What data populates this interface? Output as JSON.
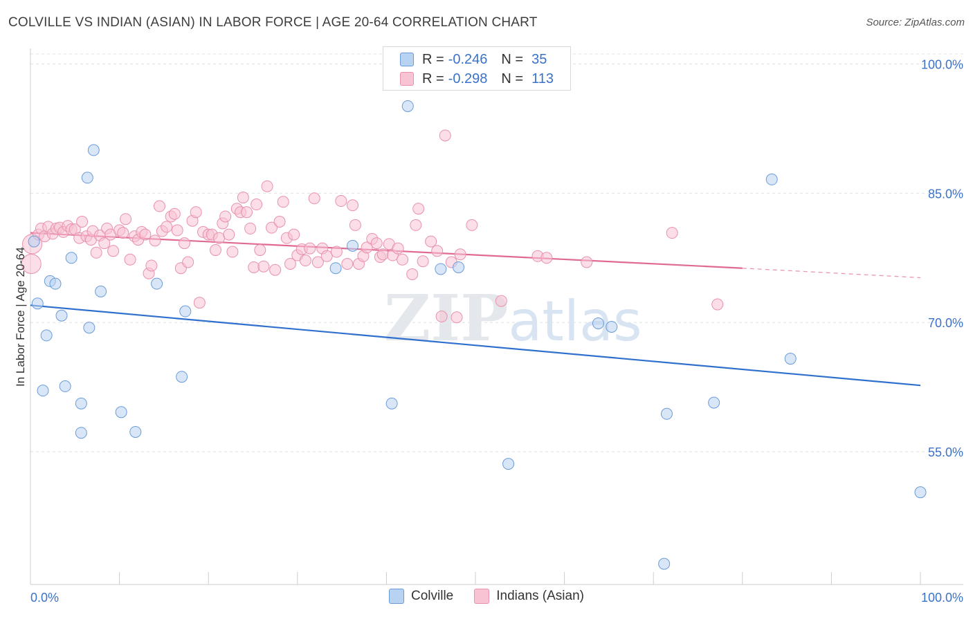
{
  "title": "COLVILLE VS INDIAN (ASIAN) IN LABOR FORCE | AGE 20-64 CORRELATION CHART",
  "source": "Source: ZipAtlas.com",
  "watermark": "ZIPatlas",
  "colors": {
    "blue_fill": "#b8d2f2",
    "blue_stroke": "#6a9bd8",
    "blue_line": "#2f6fcd",
    "pink_fill": "#f8c3d3",
    "pink_stroke": "#e891ad",
    "pink_line": "#e06a94",
    "axis_label": "#3a72c9",
    "grid": "#dde1e6"
  },
  "legend_top": [
    {
      "label": "R =",
      "r": "-0.246",
      "n_label": "N =",
      "n": "35",
      "color": "blue"
    },
    {
      "label": "R =",
      "r": "-0.298",
      "n_label": "N =",
      "n": "113",
      "color": "pink"
    }
  ],
  "legend_bottom": [
    {
      "label": "Colville",
      "color": "blue"
    },
    {
      "label": "Indians (Asian)",
      "color": "pink"
    }
  ],
  "chart_data": {
    "type": "scatter",
    "title": "COLVILLE VS INDIAN (ASIAN) IN LABOR FORCE | AGE 20-64 CORRELATION CHART",
    "xlabel": "",
    "ylabel": "In Labor Force | Age 20-64",
    "xlim": [
      0,
      100
    ],
    "ylim": [
      39.6,
      101.8
    ],
    "x_tick_labels": [
      "0.0%",
      "100.0%"
    ],
    "y_ticks": [
      55,
      70,
      85,
      100
    ],
    "y_tick_labels": [
      "55.0%",
      "70.0%",
      "85.0%",
      "100.0%"
    ],
    "grid": true,
    "series": [
      {
        "name": "Colville",
        "color": "blue",
        "r": -0.246,
        "n": 35,
        "trend": {
          "x": [
            0,
            100
          ],
          "y": [
            72.0,
            62.7
          ]
        },
        "points": [
          [
            0.4,
            79.4
          ],
          [
            0.8,
            72.2
          ],
          [
            1.4,
            62.1
          ],
          [
            1.8,
            68.5
          ],
          [
            2.2,
            74.8
          ],
          [
            2.8,
            74.5
          ],
          [
            3.5,
            70.8
          ],
          [
            3.9,
            62.6
          ],
          [
            4.6,
            77.5
          ],
          [
            5.7,
            60.6
          ],
          [
            5.7,
            57.2
          ],
          [
            6.6,
            69.4
          ],
          [
            7.1,
            90.0
          ],
          [
            6.4,
            86.8
          ],
          [
            7.9,
            73.6
          ],
          [
            10.2,
            59.6
          ],
          [
            11.8,
            57.3
          ],
          [
            14.2,
            74.5
          ],
          [
            17.0,
            63.7
          ],
          [
            17.4,
            71.3
          ],
          [
            34.3,
            76.3
          ],
          [
            36.2,
            78.9
          ],
          [
            40.6,
            60.6
          ],
          [
            42.4,
            95.1
          ],
          [
            46.1,
            76.2
          ],
          [
            48.1,
            76.4
          ],
          [
            53.7,
            53.6
          ],
          [
            63.8,
            69.9
          ],
          [
            65.3,
            69.5
          ],
          [
            71.5,
            59.4
          ],
          [
            71.2,
            42.0
          ],
          [
            76.8,
            60.7
          ],
          [
            83.3,
            86.6
          ],
          [
            85.4,
            65.8
          ],
          [
            100.0,
            50.3
          ]
        ]
      },
      {
        "name": "Indians (Asian)",
        "color": "pink",
        "r": -0.298,
        "n": 113,
        "trend": {
          "x": [
            0,
            80
          ],
          "y": [
            80.4,
            76.3
          ]
        },
        "trend_dashed": {
          "x": [
            80,
            100
          ],
          "y": [
            76.3,
            75.2
          ]
        },
        "points": [
          [
            0.1,
            76.8
          ],
          [
            0.2,
            79.1
          ],
          [
            0.9,
            80.2
          ],
          [
            1.2,
            80.9
          ],
          [
            1.6,
            80.0
          ],
          [
            2.0,
            81.1
          ],
          [
            2.5,
            80.3
          ],
          [
            2.9,
            80.9
          ],
          [
            3.3,
            81.0
          ],
          [
            3.7,
            80.5
          ],
          [
            4.2,
            81.2
          ],
          [
            4.6,
            80.8
          ],
          [
            5.0,
            80.8
          ],
          [
            5.5,
            79.8
          ],
          [
            5.8,
            81.7
          ],
          [
            6.3,
            80.0
          ],
          [
            6.8,
            79.6
          ],
          [
            7.0,
            80.6
          ],
          [
            7.4,
            78.1
          ],
          [
            7.8,
            80.1
          ],
          [
            8.3,
            79.2
          ],
          [
            8.6,
            80.9
          ],
          [
            9.0,
            80.2
          ],
          [
            9.3,
            78.3
          ],
          [
            10.0,
            80.7
          ],
          [
            10.4,
            80.4
          ],
          [
            10.7,
            82.0
          ],
          [
            11.2,
            77.3
          ],
          [
            11.7,
            80.0
          ],
          [
            12.1,
            79.6
          ],
          [
            12.5,
            80.5
          ],
          [
            12.9,
            80.2
          ],
          [
            13.3,
            75.7
          ],
          [
            13.6,
            76.6
          ],
          [
            14.0,
            79.5
          ],
          [
            14.5,
            83.5
          ],
          [
            14.8,
            80.6
          ],
          [
            15.3,
            81.1
          ],
          [
            15.8,
            82.3
          ],
          [
            16.2,
            82.6
          ],
          [
            16.5,
            80.7
          ],
          [
            16.9,
            76.3
          ],
          [
            17.3,
            79.2
          ],
          [
            17.7,
            77.0
          ],
          [
            18.2,
            81.8
          ],
          [
            18.6,
            82.8
          ],
          [
            19.0,
            72.3
          ],
          [
            19.4,
            80.5
          ],
          [
            20.0,
            80.2
          ],
          [
            20.4,
            80.2
          ],
          [
            20.8,
            78.4
          ],
          [
            21.2,
            79.8
          ],
          [
            21.6,
            81.5
          ],
          [
            21.9,
            82.3
          ],
          [
            22.3,
            80.2
          ],
          [
            22.7,
            78.2
          ],
          [
            23.2,
            83.2
          ],
          [
            23.6,
            82.8
          ],
          [
            23.9,
            84.5
          ],
          [
            24.3,
            82.8
          ],
          [
            24.7,
            80.9
          ],
          [
            25.1,
            76.4
          ],
          [
            25.4,
            83.7
          ],
          [
            25.8,
            78.4
          ],
          [
            26.2,
            76.5
          ],
          [
            26.6,
            85.8
          ],
          [
            27.1,
            81.0
          ],
          [
            27.5,
            76.1
          ],
          [
            28.0,
            81.7
          ],
          [
            28.4,
            84.0
          ],
          [
            28.8,
            79.8
          ],
          [
            29.2,
            76.8
          ],
          [
            29.6,
            80.2
          ],
          [
            30.0,
            77.8
          ],
          [
            30.5,
            78.5
          ],
          [
            30.9,
            77.2
          ],
          [
            31.4,
            78.6
          ],
          [
            31.9,
            84.4
          ],
          [
            32.3,
            77.0
          ],
          [
            32.8,
            78.6
          ],
          [
            33.3,
            77.7
          ],
          [
            34.4,
            78.2
          ],
          [
            34.9,
            84.1
          ],
          [
            35.6,
            76.8
          ],
          [
            36.2,
            83.6
          ],
          [
            36.5,
            81.3
          ],
          [
            36.9,
            76.8
          ],
          [
            37.4,
            77.7
          ],
          [
            37.8,
            78.7
          ],
          [
            38.4,
            79.7
          ],
          [
            38.9,
            79.2
          ],
          [
            39.3,
            77.6
          ],
          [
            39.6,
            77.9
          ],
          [
            40.3,
            79.1
          ],
          [
            40.7,
            77.8
          ],
          [
            41.3,
            78.6
          ],
          [
            41.8,
            77.3
          ],
          [
            42.9,
            75.6
          ],
          [
            43.3,
            81.3
          ],
          [
            43.6,
            83.2
          ],
          [
            44.1,
            77.1
          ],
          [
            45.0,
            79.4
          ],
          [
            45.7,
            78.3
          ],
          [
            46.2,
            70.7
          ],
          [
            46.6,
            91.7
          ],
          [
            47.3,
            77.0
          ],
          [
            47.9,
            70.6
          ],
          [
            48.3,
            77.9
          ],
          [
            49.6,
            81.3
          ],
          [
            52.9,
            72.5
          ],
          [
            57.0,
            77.7
          ],
          [
            58.0,
            77.5
          ],
          [
            72.1,
            80.4
          ],
          [
            77.2,
            72.1
          ],
          [
            62.5,
            77.0
          ]
        ]
      }
    ]
  }
}
